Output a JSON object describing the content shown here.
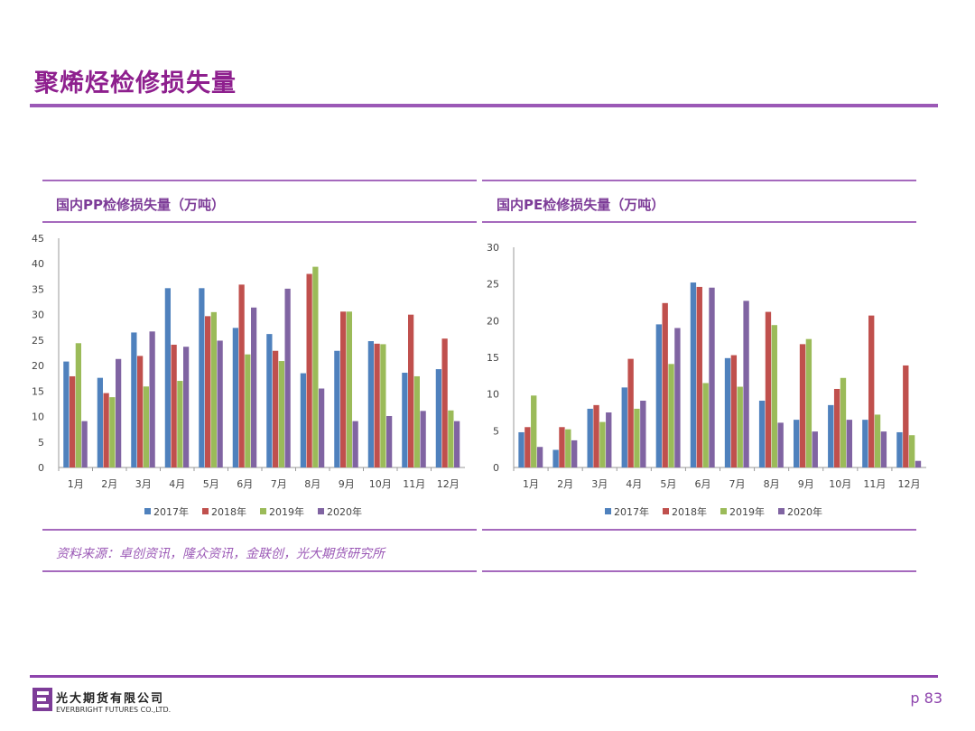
{
  "page": {
    "title": "聚烯烃检修损失量",
    "source": "资料来源：卓创资讯，隆众资讯，金联创，光大期货研究所",
    "page_number": "p 83",
    "company_cn": "光大期货有限公司",
    "company_en": "EVERBRIGHT FUTURES CO.,LTD."
  },
  "colors": {
    "accent": "#8e1f8e",
    "rule": "#a569bd",
    "series": [
      "#4f81bd",
      "#c0504d",
      "#9bbb59",
      "#8064a2"
    ]
  },
  "chart_data": [
    {
      "type": "bar",
      "title": "国内PP检修损失量（万吨）",
      "categories": [
        "1月",
        "2月",
        "3月",
        "4月",
        "5月",
        "6月",
        "7月",
        "8月",
        "9月",
        "10月",
        "11月",
        "12月"
      ],
      "ylim": [
        0,
        45
      ],
      "yticks": [
        0,
        5,
        10,
        15,
        20,
        25,
        30,
        35,
        40,
        45
      ],
      "legend_position": "bottom",
      "grid": false,
      "series": [
        {
          "name": "2017年",
          "values": [
            20.8,
            17.6,
            26.5,
            35.2,
            35.2,
            27.4,
            26.2,
            18.5,
            22.9,
            24.8,
            18.6,
            19.3
          ]
        },
        {
          "name": "2018年",
          "values": [
            17.9,
            14.6,
            21.9,
            24.1,
            29.7,
            35.9,
            22.9,
            38.0,
            30.6,
            24.3,
            30.0,
            25.3
          ]
        },
        {
          "name": "2019年",
          "values": [
            24.4,
            13.8,
            15.9,
            17.0,
            30.5,
            22.2,
            20.9,
            39.4,
            30.6,
            24.2,
            17.9,
            11.2
          ]
        },
        {
          "name": "2020年",
          "values": [
            9.1,
            21.3,
            26.7,
            23.7,
            24.9,
            31.4,
            35.1,
            15.5,
            9.1,
            10.1,
            11.1,
            9.1
          ]
        }
      ]
    },
    {
      "type": "bar",
      "title": "国内PE检修损失量（万吨）",
      "categories": [
        "1月",
        "2月",
        "3月",
        "4月",
        "5月",
        "6月",
        "7月",
        "8月",
        "9月",
        "10月",
        "11月",
        "12月"
      ],
      "ylim": [
        0,
        30
      ],
      "yticks": [
        0,
        5,
        10,
        15,
        20,
        25,
        30
      ],
      "legend_position": "bottom",
      "grid": false,
      "series": [
        {
          "name": "2017年",
          "values": [
            4.8,
            2.4,
            8.0,
            10.9,
            19.5,
            25.2,
            14.9,
            9.1,
            6.5,
            8.5,
            6.5,
            4.8
          ]
        },
        {
          "name": "2018年",
          "values": [
            5.5,
            5.5,
            8.5,
            14.8,
            22.4,
            24.6,
            15.3,
            21.2,
            16.8,
            10.7,
            20.7,
            13.9
          ]
        },
        {
          "name": "2019年",
          "values": [
            9.8,
            5.2,
            6.2,
            8.0,
            14.1,
            11.5,
            11.0,
            19.4,
            17.5,
            12.2,
            7.2,
            4.4
          ]
        },
        {
          "name": "2020年",
          "values": [
            2.8,
            3.7,
            7.5,
            9.1,
            19.0,
            24.5,
            22.7,
            6.1,
            4.9,
            6.5,
            4.9,
            0.9
          ]
        }
      ]
    }
  ]
}
